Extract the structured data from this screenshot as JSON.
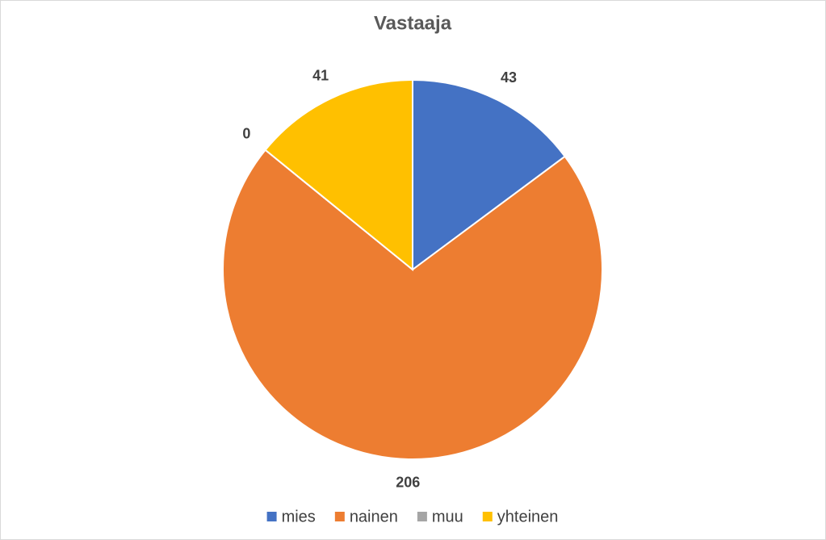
{
  "chart_data": {
    "type": "pie",
    "title": "Vastaaja",
    "categories": [
      "mies",
      "nainen",
      "muu",
      "yhteinen"
    ],
    "values": [
      43,
      206,
      0,
      41
    ],
    "colors": [
      "#4472c4",
      "#ed7d31",
      "#a5a5a5",
      "#ffc000"
    ],
    "legend": "bottom"
  }
}
